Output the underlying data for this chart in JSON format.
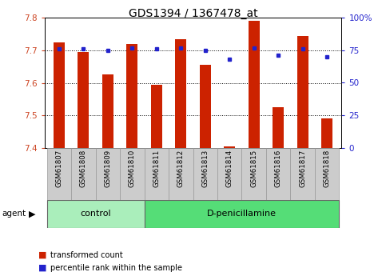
{
  "title": "GDS1394 / 1367478_at",
  "samples": [
    "GSM61807",
    "GSM61808",
    "GSM61809",
    "GSM61810",
    "GSM61811",
    "GSM61812",
    "GSM61813",
    "GSM61814",
    "GSM61815",
    "GSM61816",
    "GSM61817",
    "GSM61818"
  ],
  "bar_values": [
    7.725,
    7.695,
    7.625,
    7.72,
    7.595,
    7.735,
    7.655,
    7.405,
    7.79,
    7.525,
    7.745,
    7.49
  ],
  "percentile_values": [
    76,
    76,
    75,
    77,
    76,
    77,
    75,
    68,
    77,
    71,
    76,
    70
  ],
  "ylim_left": [
    7.4,
    7.8
  ],
  "ylim_right": [
    0,
    100
  ],
  "yticks_left": [
    7.4,
    7.5,
    7.6,
    7.7,
    7.8
  ],
  "yticks_right": [
    0,
    25,
    50,
    75,
    100
  ],
  "ytick_labels_right": [
    "0",
    "25",
    "50",
    "75",
    "100%"
  ],
  "bar_color": "#cc2200",
  "percentile_color": "#2222cc",
  "bar_bottom": 7.4,
  "groups": [
    {
      "label": "control",
      "start": 0,
      "end": 4,
      "color": "#aaeebb"
    },
    {
      "label": "D-penicillamine",
      "start": 4,
      "end": 12,
      "color": "#55dd77"
    }
  ],
  "background_color": "#ffffff",
  "plot_bg_color": "#ffffff",
  "tick_label_color_left": "#cc4422",
  "tick_label_color_right": "#2222cc",
  "xlabel_area_color": "#cccccc",
  "title_fontsize": 10,
  "tick_fontsize": 7.5,
  "bar_width": 0.45
}
